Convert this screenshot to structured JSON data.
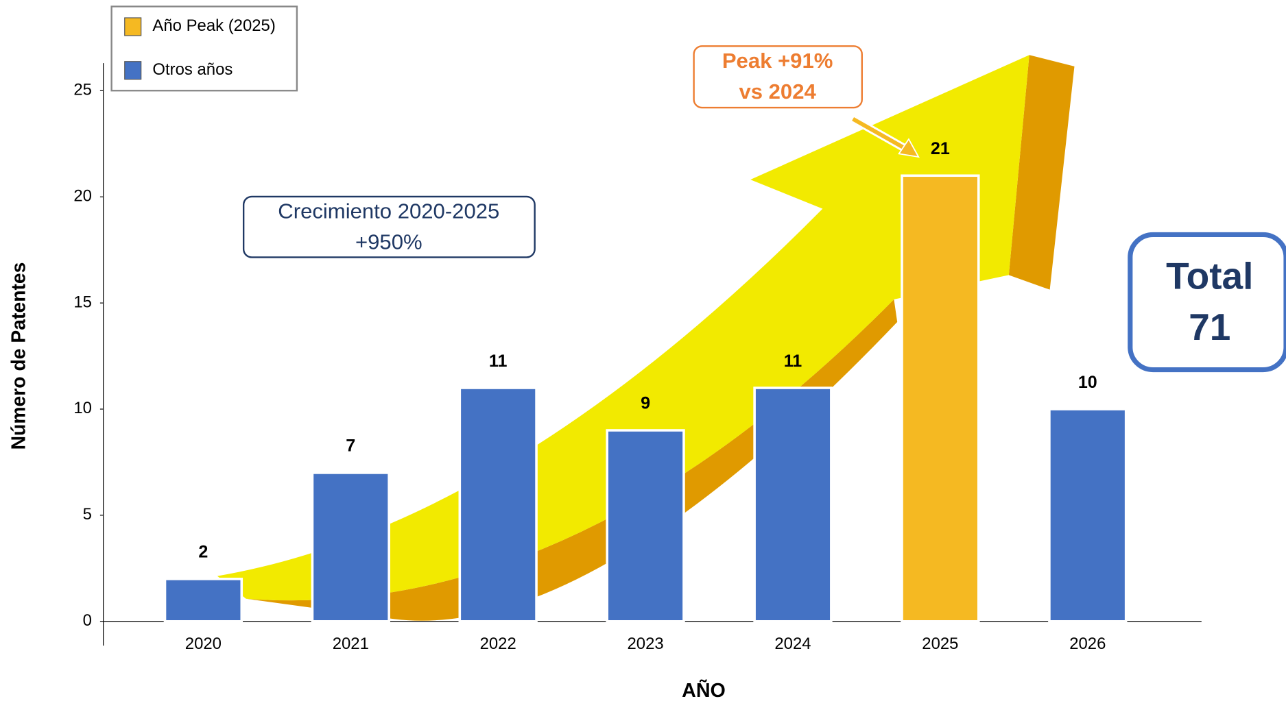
{
  "chart_data": {
    "type": "bar",
    "categories": [
      "2020",
      "2021",
      "2022",
      "2023",
      "2024",
      "2025",
      "2026"
    ],
    "values": [
      2,
      7,
      11,
      9,
      11,
      21,
      10
    ],
    "colors": [
      "#4472c4",
      "#4472c4",
      "#4472c4",
      "#4472c4",
      "#4472c4",
      "#f5b922",
      "#4472c4"
    ],
    "legend": [
      {
        "name": "Año Peak (2025)",
        "color": "#f5b922"
      },
      {
        "name": "Otros años",
        "color": "#4472c4"
      }
    ],
    "ylim": [
      0,
      26.3
    ],
    "yticks": [
      0,
      5,
      10,
      15,
      20,
      25
    ],
    "y_label": "Número de Patentes",
    "x_label": "AÑO",
    "growth_title": "Crecimiento 2020-2025",
    "growth_value": "+950%",
    "peak_title": "Peak +91%",
    "peak_sub": "vs 2024",
    "total_title": "Total",
    "total_value": "71"
  }
}
